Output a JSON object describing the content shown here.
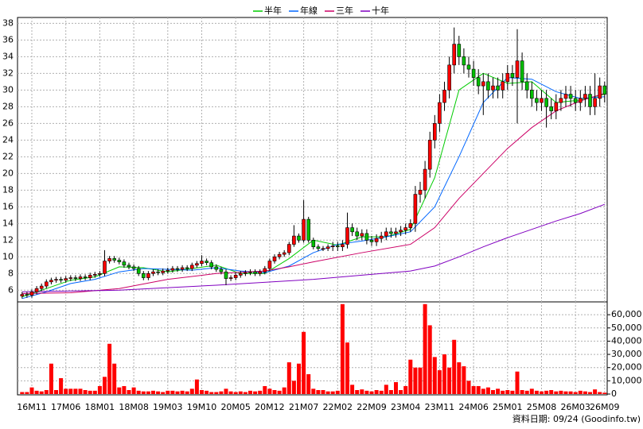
{
  "chart_data": {
    "type": "candlestick",
    "categories": [
      null,
      null,
      "16M11",
      null,
      null,
      null,
      null,
      null,
      null,
      "17M06",
      null,
      null,
      null,
      null,
      null,
      null,
      "18M01",
      null,
      null,
      null,
      null,
      null,
      null,
      "18M08",
      null,
      null,
      null,
      null,
      null,
      null,
      "19M03",
      null,
      null,
      null,
      null,
      null,
      null,
      "19M10",
      null,
      null,
      null,
      null,
      null,
      null,
      "20M05",
      null,
      null,
      null,
      null,
      null,
      null,
      "20M12",
      null,
      null,
      null,
      null,
      null,
      null,
      "21M07",
      null,
      null,
      null,
      null,
      null,
      null,
      "22M02",
      null,
      null,
      null,
      null,
      null,
      null,
      "22M09",
      null,
      null,
      null,
      null,
      null,
      null,
      "23M04",
      null,
      null,
      null,
      null,
      null,
      null,
      "23M11",
      null,
      null,
      null,
      null,
      null,
      null,
      "24M06",
      null,
      null,
      null,
      null,
      null,
      null,
      "25M01",
      null,
      null,
      null,
      null,
      null,
      null,
      "25M08",
      null,
      null,
      null,
      null,
      null,
      null,
      "26M03",
      null,
      null,
      null,
      null,
      null,
      "26M09"
    ],
    "open": [
      5.3,
      5.5,
      5.4,
      5.8,
      6.2,
      6.5,
      7.0,
      7.2,
      7.3,
      7.2,
      7.4,
      7.5,
      7.4,
      7.6,
      7.5,
      7.8,
      7.9,
      8.0,
      9.5,
      9.8,
      9.6,
      9.4,
      9.0,
      8.8,
      8.6,
      8.0,
      7.5,
      8.0,
      8.2,
      8.1,
      8.3,
      8.4,
      8.6,
      8.5,
      8.7,
      8.6,
      9.0,
      9.2,
      9.5,
      9.3,
      8.8,
      8.5,
      8.2,
      7.4,
      7.5,
      7.8,
      8.0,
      8.1,
      8.2,
      8.0,
      8.2,
      8.6,
      9.5,
      10.0,
      10.3,
      10.5,
      11.5,
      12.5,
      12.0,
      14.5,
      12.0,
      11.2,
      11.0,
      11.0,
      11.2,
      11.3,
      11.2,
      11.5,
      13.5,
      13.0,
      12.5,
      12.8,
      12.0,
      11.8,
      12.2,
      12.5,
      13.0,
      12.8,
      13.0,
      13.2,
      13.5,
      14.0,
      17.5,
      18.0,
      20.5,
      24.0,
      26.0,
      28.5,
      30.0,
      33.0,
      35.5,
      34.0,
      33.0,
      32.5,
      31.5,
      30.5,
      31.0,
      30.0,
      30.5,
      30.0,
      31.0,
      32.0,
      31.5,
      33.5,
      31.0,
      30.0,
      29.0,
      28.5,
      29.0,
      28.0,
      27.5,
      28.5,
      29.0,
      29.5,
      29.0,
      28.5,
      29.0,
      29.5,
      28.0,
      29.0,
      30.5
    ],
    "high": [
      5.8,
      5.8,
      6.1,
      6.5,
      6.8,
      7.3,
      7.5,
      7.6,
      7.6,
      7.7,
      7.8,
      7.8,
      7.9,
      7.9,
      8.1,
      8.2,
      8.3,
      10.8,
      10.1,
      10.1,
      9.9,
      9.7,
      9.3,
      9.1,
      8.9,
      8.3,
      8.3,
      8.5,
      8.5,
      8.6,
      8.7,
      8.9,
      8.9,
      9.0,
      9.0,
      9.3,
      9.5,
      10.2,
      9.8,
      9.6,
      9.1,
      8.8,
      8.5,
      7.8,
      8.1,
      8.3,
      8.4,
      8.5,
      8.5,
      8.5,
      8.9,
      9.8,
      10.3,
      10.6,
      10.8,
      11.8,
      13.8,
      12.8,
      16.8,
      14.8,
      12.3,
      11.5,
      11.3,
      11.5,
      11.8,
      11.8,
      12.0,
      15.3,
      14.0,
      13.5,
      13.3,
      13.3,
      12.5,
      12.7,
      13.0,
      13.5,
      13.5,
      13.5,
      13.7,
      14.0,
      14.5,
      18.5,
      19.0,
      21.5,
      25.0,
      27.0,
      29.5,
      31.0,
      34.0,
      37.5,
      36.5,
      35.0,
      34.0,
      33.5,
      32.5,
      32.0,
      32.0,
      31.5,
      31.5,
      32.0,
      33.0,
      33.0,
      37.3,
      34.5,
      32.0,
      31.0,
      30.0,
      30.0,
      30.0,
      29.0,
      29.5,
      30.0,
      30.5,
      30.5,
      30.0,
      30.0,
      30.5,
      30.5,
      32.0,
      31.5,
      31.0
    ],
    "low": [
      5.0,
      5.1,
      5.1,
      5.5,
      5.9,
      6.2,
      6.7,
      6.9,
      6.9,
      6.9,
      7.1,
      7.1,
      7.1,
      7.2,
      7.2,
      7.5,
      7.6,
      7.7,
      9.2,
      9.3,
      9.1,
      8.7,
      8.5,
      8.3,
      7.7,
      7.2,
      7.2,
      7.7,
      7.8,
      7.8,
      8.0,
      8.1,
      8.2,
      8.2,
      8.3,
      8.3,
      8.7,
      8.9,
      9.0,
      8.5,
      8.2,
      7.9,
      6.6,
      7.1,
      7.2,
      7.5,
      7.7,
      7.8,
      7.7,
      7.7,
      7.9,
      8.3,
      9.2,
      9.7,
      10.0,
      10.2,
      11.2,
      11.7,
      11.7,
      11.7,
      10.9,
      10.7,
      10.7,
      10.7,
      10.7,
      10.7,
      10.7,
      11.0,
      12.5,
      12.0,
      12.0,
      11.5,
      11.3,
      11.3,
      11.7,
      12.0,
      12.3,
      12.3,
      12.5,
      12.7,
      13.0,
      13.0,
      16.5,
      17.0,
      19.5,
      23.0,
      25.0,
      27.5,
      29.0,
      32.0,
      33.0,
      32.0,
      31.5,
      30.5,
      29.5,
      27.0,
      29.0,
      29.0,
      29.0,
      29.0,
      30.0,
      30.5,
      26.0,
      30.0,
      29.0,
      28.0,
      27.5,
      27.5,
      25.5,
      26.5,
      26.5,
      27.5,
      28.0,
      28.0,
      27.5,
      27.5,
      28.0,
      27.0,
      27.0,
      28.0,
      28.5
    ],
    "close": [
      5.5,
      5.4,
      5.8,
      6.2,
      6.5,
      7.0,
      7.2,
      7.3,
      7.2,
      7.4,
      7.5,
      7.4,
      7.6,
      7.5,
      7.8,
      7.9,
      8.0,
      9.5,
      9.8,
      9.6,
      9.4,
      9.0,
      8.8,
      8.6,
      8.0,
      7.5,
      8.0,
      8.2,
      8.1,
      8.3,
      8.4,
      8.6,
      8.5,
      8.7,
      8.6,
      9.0,
      9.2,
      9.5,
      9.3,
      8.8,
      8.5,
      8.2,
      7.4,
      7.5,
      7.8,
      8.0,
      8.1,
      8.2,
      8.0,
      8.2,
      8.6,
      9.5,
      10.0,
      10.3,
      10.5,
      11.5,
      12.5,
      12.0,
      14.5,
      12.0,
      11.2,
      11.0,
      11.0,
      11.2,
      11.3,
      11.2,
      11.5,
      13.5,
      13.0,
      12.5,
      12.8,
      12.0,
      11.8,
      12.2,
      12.5,
      13.0,
      12.8,
      13.0,
      13.2,
      13.5,
      14.0,
      17.5,
      18.0,
      20.5,
      24.0,
      26.0,
      28.5,
      30.0,
      33.0,
      35.5,
      34.0,
      33.0,
      32.5,
      31.5,
      30.5,
      31.0,
      30.0,
      30.5,
      30.0,
      31.0,
      32.0,
      31.5,
      33.5,
      31.0,
      30.0,
      29.0,
      28.5,
      29.0,
      28.0,
      27.5,
      28.5,
      29.0,
      29.5,
      29.0,
      28.5,
      29.0,
      29.5,
      28.0,
      29.0,
      30.5,
      29.5
    ],
    "up_color": "#ff0000",
    "down_color": "#00c000",
    "ylim": [
      4.6,
      38.7
    ],
    "yticks": [
      6,
      8,
      10,
      12,
      14,
      16,
      18,
      20,
      22,
      24,
      26,
      28,
      30,
      32,
      34,
      36,
      38
    ],
    "grid": true,
    "legend": "top",
    "series": [
      {
        "name": "半年",
        "color": "#00cc00",
        "x": [
          0,
          5,
          10,
          15,
          20,
          25,
          30,
          35,
          40,
          45,
          50,
          55,
          60,
          65,
          70,
          75,
          80,
          85,
          90,
          95,
          100,
          105,
          110,
          115,
          120
        ],
        "values": [
          5.2,
          6.2,
          7.2,
          7.6,
          8.8,
          8.7,
          8.2,
          8.6,
          9.0,
          8.0,
          8.0,
          9.8,
          12.0,
          11.4,
          12.4,
          12.4,
          13.3,
          19.5,
          30.0,
          32.0,
          30.8,
          31.0,
          28.5,
          28.8,
          29.5
        ]
      },
      {
        "name": "年線",
        "color": "#0066ff",
        "x": [
          0,
          5,
          10,
          15,
          20,
          25,
          30,
          35,
          40,
          45,
          50,
          55,
          60,
          65,
          70,
          75,
          80,
          85,
          90,
          95,
          100,
          105,
          110,
          115,
          120
        ],
        "values": [
          5.0,
          5.8,
          6.8,
          7.3,
          8.2,
          8.6,
          8.5,
          8.4,
          8.7,
          8.3,
          8.1,
          8.9,
          10.5,
          11.5,
          11.9,
          12.4,
          13.0,
          16.0,
          22.0,
          28.5,
          31.5,
          31.3,
          29.8,
          29.0,
          29.2
        ]
      },
      {
        "name": "三年",
        "color": "#cc0066",
        "x": [
          0,
          10,
          20,
          30,
          40,
          50,
          55,
          60,
          70,
          80,
          85,
          90,
          95,
          100,
          105,
          110,
          115,
          120
        ],
        "values": [
          5.6,
          5.7,
          6.2,
          7.3,
          8.0,
          8.3,
          8.8,
          9.4,
          10.5,
          11.5,
          13.5,
          17.0,
          20.0,
          23.0,
          25.5,
          27.5,
          28.7,
          29.6
        ]
      },
      {
        "name": "十年",
        "color": "#8000c0",
        "x": [
          0,
          20,
          40,
          60,
          70,
          80,
          85,
          90,
          95,
          100,
          105,
          110,
          115,
          120
        ],
        "values": [
          5.8,
          6.0,
          6.6,
          7.3,
          7.8,
          8.3,
          8.9,
          10.0,
          11.2,
          12.3,
          13.3,
          14.3,
          15.2,
          16.3
        ]
      }
    ],
    "volume": {
      "color": "#ff0000",
      "values": [
        1500,
        1500,
        5000,
        2500,
        2000,
        3000,
        23000,
        3000,
        12000,
        4000,
        4000,
        4000,
        4000,
        3000,
        2500,
        2500,
        6000,
        13000,
        38000,
        23000,
        5000,
        6000,
        3000,
        5000,
        2500,
        2000,
        2000,
        2500,
        2000,
        1500,
        2500,
        2500,
        2000,
        2500,
        2000,
        4000,
        11000,
        3000,
        2500,
        1500,
        1500,
        2000,
        4000,
        2000,
        1500,
        2000,
        1500,
        2500,
        2000,
        2500,
        6000,
        4000,
        3000,
        2500,
        5000,
        24000,
        10000,
        23000,
        47000,
        15000,
        4000,
        3000,
        3000,
        2000,
        2000,
        2500,
        68000,
        39000,
        7000,
        3000,
        3500,
        2500,
        2000,
        3000,
        2500,
        7000,
        3000,
        9000,
        3000,
        6000,
        26000,
        20000,
        20000,
        68000,
        52000,
        28000,
        18000,
        30000,
        20000,
        41000,
        24000,
        21000,
        10000,
        6000,
        6000,
        4000,
        5000,
        3000,
        4000,
        2500,
        3000,
        2500,
        17000,
        3000,
        2500,
        4000,
        2500,
        2000,
        2500,
        3000,
        2000,
        2500,
        2000,
        2000,
        1500,
        2500,
        2000,
        1500,
        3500,
        1500,
        1000
      ],
      "ylim": [
        0,
        70000
      ],
      "yticks": [
        0,
        {
          "value": 10000,
          "label": "10,000"
        },
        {
          "value": 20000,
          "label": "20,000"
        },
        {
          "value": 30000,
          "label": "30,000"
        },
        {
          "value": 40000,
          "label": "40,000"
        },
        {
          "value": 50000,
          "label": "50,000"
        },
        {
          "value": 60000,
          "label": "60,000"
        }
      ]
    },
    "footer": "資料日期: 09/24 (Goodinfo.tw)"
  }
}
